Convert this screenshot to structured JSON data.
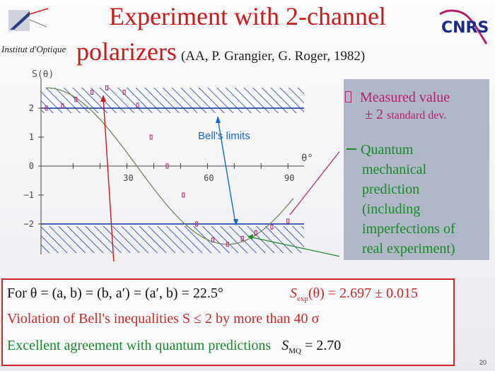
{
  "logo_left": {
    "caption": "Institut d'Optique"
  },
  "logo_right": {
    "text": "CNRS"
  },
  "title": {
    "line1": "Experiment with 2-channel",
    "line2": "polarizers",
    "subtitle": "(AA, P. Grangier, G. Roger, 1982)"
  },
  "chart_data": {
    "type": "scatter",
    "ylabel": "S(θ)",
    "xlabel": "θ°",
    "x_ticks": [
      "30",
      "60",
      "90"
    ],
    "y_ticks": [
      "2",
      "1",
      "0",
      "−1",
      "−2"
    ],
    "xlim": [
      -2,
      96
    ],
    "ylim": [
      -3.05,
      3.05
    ],
    "bell_limits": [
      2,
      -2
    ],
    "grid": false,
    "series": [
      {
        "kind": "measured",
        "x": [
          0,
          6,
          11,
          17,
          22.5,
          29,
          34,
          39,
          45,
          51,
          56,
          62,
          67.5,
          73,
          78,
          84,
          90
        ],
        "y": [
          2.0,
          2.08,
          2.3,
          2.55,
          2.7,
          2.55,
          2.1,
          1.0,
          0.0,
          -1.0,
          -2.0,
          -2.55,
          -2.7,
          -2.5,
          -2.3,
          -2.1,
          -1.9
        ]
      },
      {
        "kind": "quantum",
        "function": "S(θ) = 2.70 · cos(2.67·θ) (smooth curve)"
      }
    ]
  },
  "annotations": {
    "bells_limits": "Bell's limits",
    "theta_deg": "θ°",
    "s_theta": "S(θ)"
  },
  "panel": {
    "measured_line1": "Measured value",
    "measured_line2": "± 2",
    "measured_line2b": "standard dev.",
    "qm_lines": [
      "Quantum",
      "mechanical",
      "prediction",
      "(including",
      "imperfections of",
      "real experiment)"
    ]
  },
  "box": {
    "line1": "For θ = (a, b) = (b, a′) = (a′, b) = 22.5°",
    "sexp_prefix": "S",
    "sexp_sub": "exp",
    "sexp_rest": "(θ) = 2.697 ± 0.015",
    "line2": "Violation of  Bell's inequalities   S ≤ 2  by more than  40 σ",
    "line3_text": "Excellent agreement with quantum predictions",
    "smq_prefix": "S",
    "smq_sub": "MQ",
    "smq_rest": " = 2.70"
  },
  "colors": {
    "title_red": "#d01717",
    "blue": "#1769c4",
    "green": "#168a2a",
    "magenta": "#b51f6a",
    "panel": "#b0b7c6"
  },
  "slide_number": "20"
}
